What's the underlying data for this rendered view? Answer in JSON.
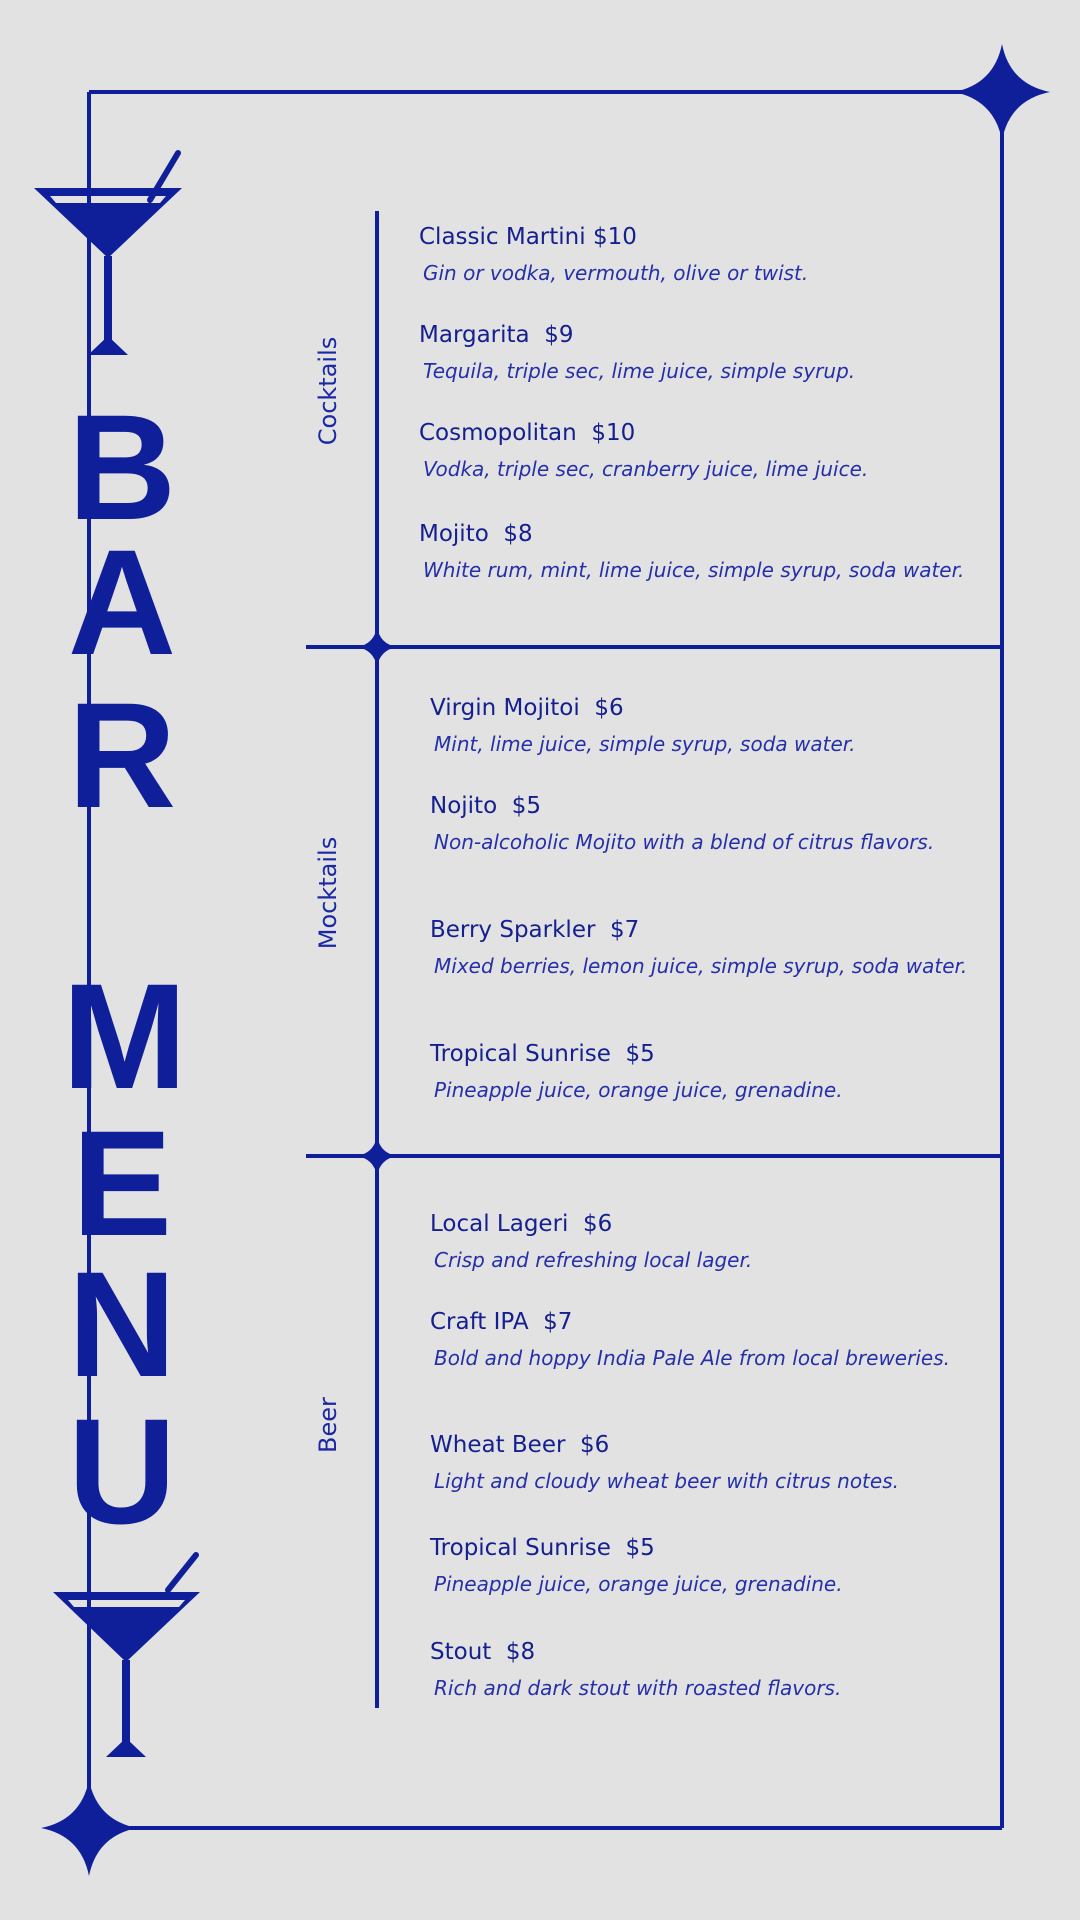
{
  "title": "BAR MENU",
  "title_letters": [
    "B",
    "A",
    "R",
    "M",
    "E",
    "N",
    "U"
  ],
  "accent_color": "#0f1f9a",
  "background_color": "#e3e2e3",
  "sections": [
    {
      "label": "Cocktails",
      "items": [
        {
          "name": "Classic Martini $10",
          "description": "Gin or vodka, vermouth, olive or twist."
        },
        {
          "name": "Margarita  $9",
          "description": "Tequila, triple sec, lime juice, simple syrup."
        },
        {
          "name": "Cosmopolitan  $10",
          "description": "Vodka, triple sec, cranberry juice, lime juice."
        },
        {
          "name": "Mojito  $8",
          "description": "White rum, mint, lime juice, simple syrup, soda water."
        }
      ]
    },
    {
      "label": "Mocktails",
      "items": [
        {
          "name": "Virgin Mojitoi  $6",
          "description": "Mint, lime juice, simple syrup, soda water."
        },
        {
          "name": "Nojito  $5",
          "description": "Non-alcoholic Mojito with a blend of citrus flavors."
        },
        {
          "name": "Berry Sparkler  $7",
          "description": "Mixed berries, lemon juice, simple syrup, soda water."
        },
        {
          "name": "Tropical Sunrise  $5",
          "description": "Pineapple juice, orange juice, grenadine."
        }
      ]
    },
    {
      "label": "Beer",
      "items": [
        {
          "name": "Local Lageri  $6",
          "description": "Crisp and refreshing local lager."
        },
        {
          "name": "Craft IPA  $7",
          "description": "Bold and hoppy India Pale Ale from local breweries."
        },
        {
          "name": "Wheat Beer  $6",
          "description": "Light and cloudy wheat beer with citrus notes."
        },
        {
          "name": "Tropical Sunrise  $5",
          "description": "Pineapple juice, orange juice, grenadine."
        },
        {
          "name": "Stout  $8",
          "description": "Rich and dark stout with roasted flavors."
        }
      ]
    }
  ]
}
